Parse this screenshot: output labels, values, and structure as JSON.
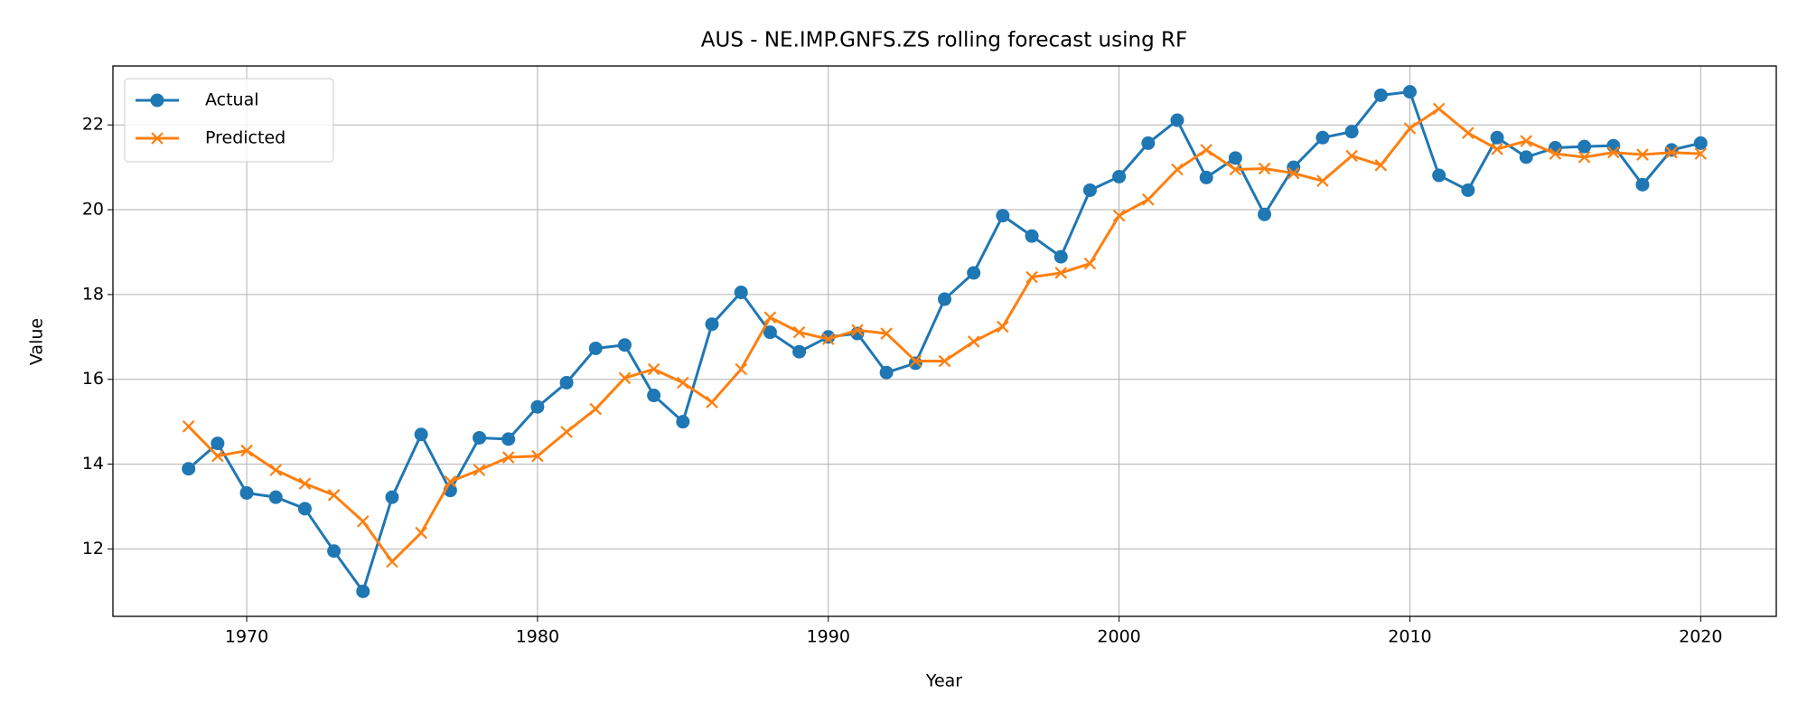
{
  "chart_data": {
    "type": "line",
    "title": "AUS - NE.IMP.GNFS.ZS rolling forecast using RF",
    "x_label": "Year",
    "y_label": "Value",
    "x": [
      1968,
      1969,
      1970,
      1971,
      1972,
      1973,
      1974,
      1975,
      1976,
      1977,
      1978,
      1979,
      1980,
      1981,
      1982,
      1983,
      1984,
      1985,
      1986,
      1987,
      1988,
      1989,
      1990,
      1991,
      1992,
      1993,
      1994,
      1995,
      1996,
      1997,
      1998,
      1999,
      2000,
      2001,
      2002,
      2003,
      2004,
      2005,
      2006,
      2007,
      2008,
      2009,
      2010,
      2011,
      2012,
      2013,
      2014,
      2015,
      2016,
      2017,
      2018,
      2019,
      2020
    ],
    "series": [
      {
        "name": "Actual",
        "color": "#1f77b4",
        "marker": "o",
        "values": [
          13.89,
          14.49,
          13.32,
          13.22,
          12.95,
          11.95,
          11.0,
          13.22,
          14.7,
          13.38,
          14.62,
          14.59,
          15.35,
          15.92,
          16.73,
          16.81,
          15.62,
          15.0,
          17.3,
          18.05,
          17.11,
          16.65,
          17.0,
          17.08,
          16.16,
          16.38,
          17.89,
          18.51,
          19.86,
          19.38,
          18.89,
          20.46,
          20.78,
          21.57,
          22.11,
          20.76,
          21.22,
          19.89,
          21.0,
          21.7,
          21.84,
          22.7,
          22.78,
          20.81,
          20.46,
          21.7,
          21.24,
          21.46,
          21.49,
          21.51,
          20.59,
          21.41,
          21.57
        ]
      },
      {
        "name": "Predicted",
        "color": "#ff7f0e",
        "marker": "x",
        "values": [
          14.89,
          14.19,
          14.32,
          13.86,
          13.54,
          13.27,
          12.65,
          11.7,
          12.38,
          13.59,
          13.86,
          14.16,
          14.19,
          14.76,
          15.3,
          16.03,
          16.24,
          15.92,
          15.46,
          16.24,
          17.46,
          17.11,
          16.95,
          17.16,
          17.08,
          16.43,
          16.43,
          16.89,
          17.24,
          18.41,
          18.51,
          18.73,
          19.86,
          20.24,
          20.95,
          21.41,
          20.95,
          20.97,
          20.86,
          20.68,
          21.27,
          21.05,
          21.92,
          22.38,
          21.81,
          21.43,
          21.62,
          21.32,
          21.24,
          21.35,
          21.3,
          21.35,
          21.32
        ]
      }
    ],
    "xlim": [
      1965.4,
      2022.6
    ],
    "xticks": [
      1970,
      1980,
      1990,
      2000,
      2010,
      2020
    ],
    "ylim": [
      10.41,
      23.39
    ],
    "yticks": [
      12,
      14,
      16,
      18,
      20,
      22
    ],
    "grid": true,
    "legend": "upper left"
  }
}
